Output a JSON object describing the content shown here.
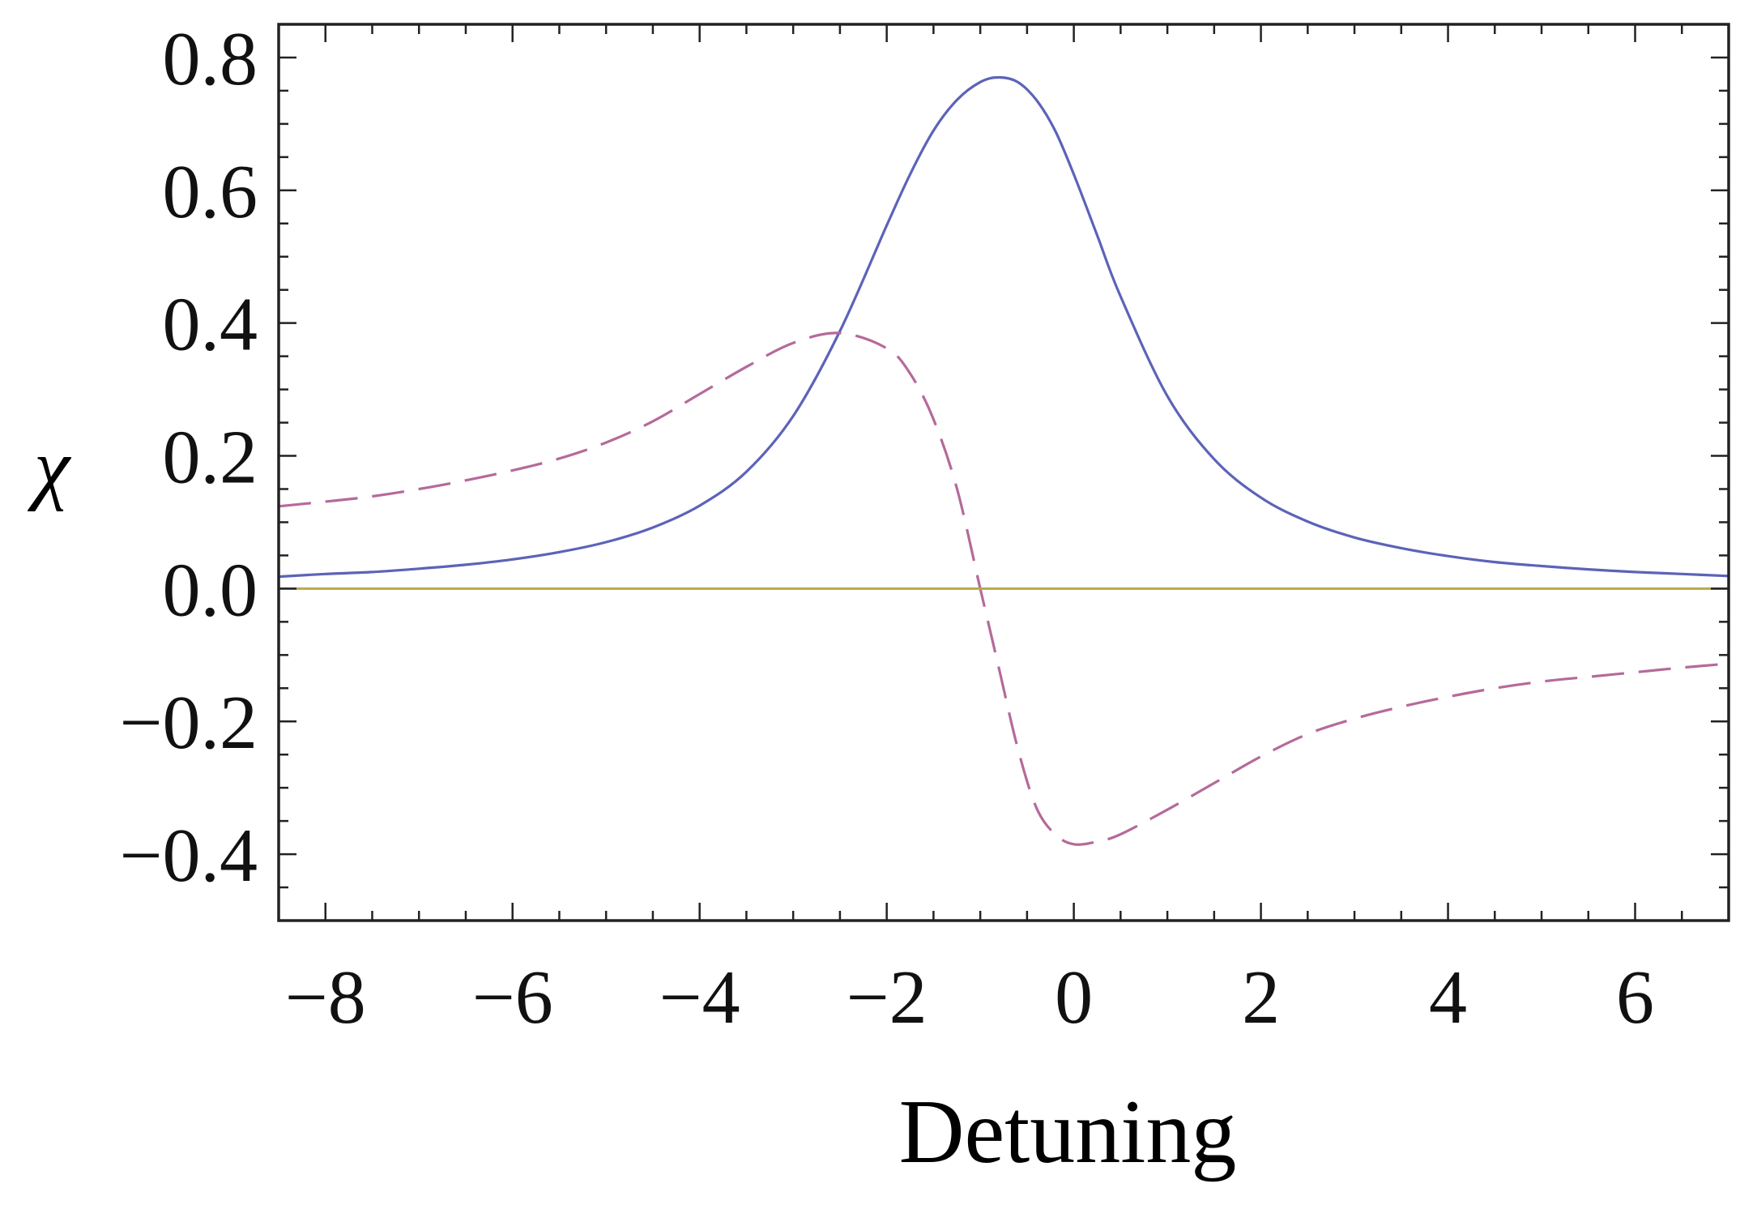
{
  "chart_data": {
    "type": "line",
    "title": "",
    "xlabel": "Detuning",
    "ylabel": "χ",
    "xlim": [
      -8.5,
      7.0
    ],
    "ylim": [
      -0.5,
      0.85
    ],
    "grid": false,
    "x_ticks": [
      -8,
      -6,
      -4,
      -2,
      0,
      2,
      4,
      6
    ],
    "x_tick_labels": [
      "−8",
      "−6",
      "−4",
      "−2",
      "0",
      "2",
      "4",
      "6"
    ],
    "y_ticks": [
      -0.4,
      -0.2,
      0.0,
      0.2,
      0.4,
      0.6,
      0.8
    ],
    "y_tick_labels": [
      "−0.4",
      "−0.2",
      "0.0",
      "0.2",
      "0.4",
      "0.6",
      "0.8"
    ],
    "x": [
      -8.5,
      -8.0,
      -7.5,
      -7.0,
      -6.5,
      -6.0,
      -5.5,
      -5.0,
      -4.5,
      -4.0,
      -3.5,
      -3.0,
      -2.5,
      -2.0,
      -1.75,
      -1.5,
      -1.25,
      -1.0,
      -0.8,
      -0.6,
      -0.4,
      -0.2,
      0.0,
      0.25,
      0.5,
      1.0,
      1.5,
      2.0,
      2.5,
      3.0,
      3.5,
      4.0,
      4.5,
      5.0,
      5.5,
      6.0,
      6.5,
      7.0
    ],
    "series": [
      {
        "color": "#5c63b8",
        "dash": "solid",
        "values": [
          0.018,
          0.022,
          0.025,
          0.03,
          0.036,
          0.044,
          0.055,
          0.07,
          0.092,
          0.125,
          0.176,
          0.26,
          0.388,
          0.547,
          0.624,
          0.69,
          0.736,
          0.763,
          0.77,
          0.763,
          0.736,
          0.69,
          0.624,
          0.532,
          0.44,
          0.29,
          0.195,
          0.137,
          0.101,
          0.077,
          0.061,
          0.049,
          0.04,
          0.034,
          0.029,
          0.025,
          0.022,
          0.019
        ]
      },
      {
        "color": "#b56a9a",
        "dash": "dashed",
        "values": [
          0.124,
          0.131,
          0.139,
          0.15,
          0.163,
          0.178,
          0.196,
          0.22,
          0.252,
          0.293,
          0.334,
          0.37,
          0.385,
          0.362,
          0.324,
          0.255,
          0.151,
          0.0,
          -0.12,
          -0.24,
          -0.33,
          -0.37,
          -0.385,
          -0.381,
          -0.37,
          -0.333,
          -0.293,
          -0.253,
          -0.219,
          -0.196,
          -0.178,
          -0.163,
          -0.15,
          -0.14,
          -0.133,
          -0.126,
          -0.119,
          -0.113
        ]
      },
      {
        "color": "#b8a84a",
        "dash": "solid",
        "values": [
          0.0,
          0.0,
          0.0,
          0.0,
          0.0,
          0.0,
          0.0,
          0.0,
          0.0,
          0.0,
          0.0,
          0.0,
          0.0,
          0.0,
          0.0,
          0.0,
          0.0,
          0.0,
          0.0,
          0.0,
          0.0,
          0.0,
          0.0,
          0.0,
          0.0,
          0.0,
          0.0,
          0.0,
          0.0,
          0.0,
          0.0,
          0.0,
          0.0,
          0.0,
          0.0,
          0.0,
          0.0,
          0.0
        ]
      }
    ]
  }
}
